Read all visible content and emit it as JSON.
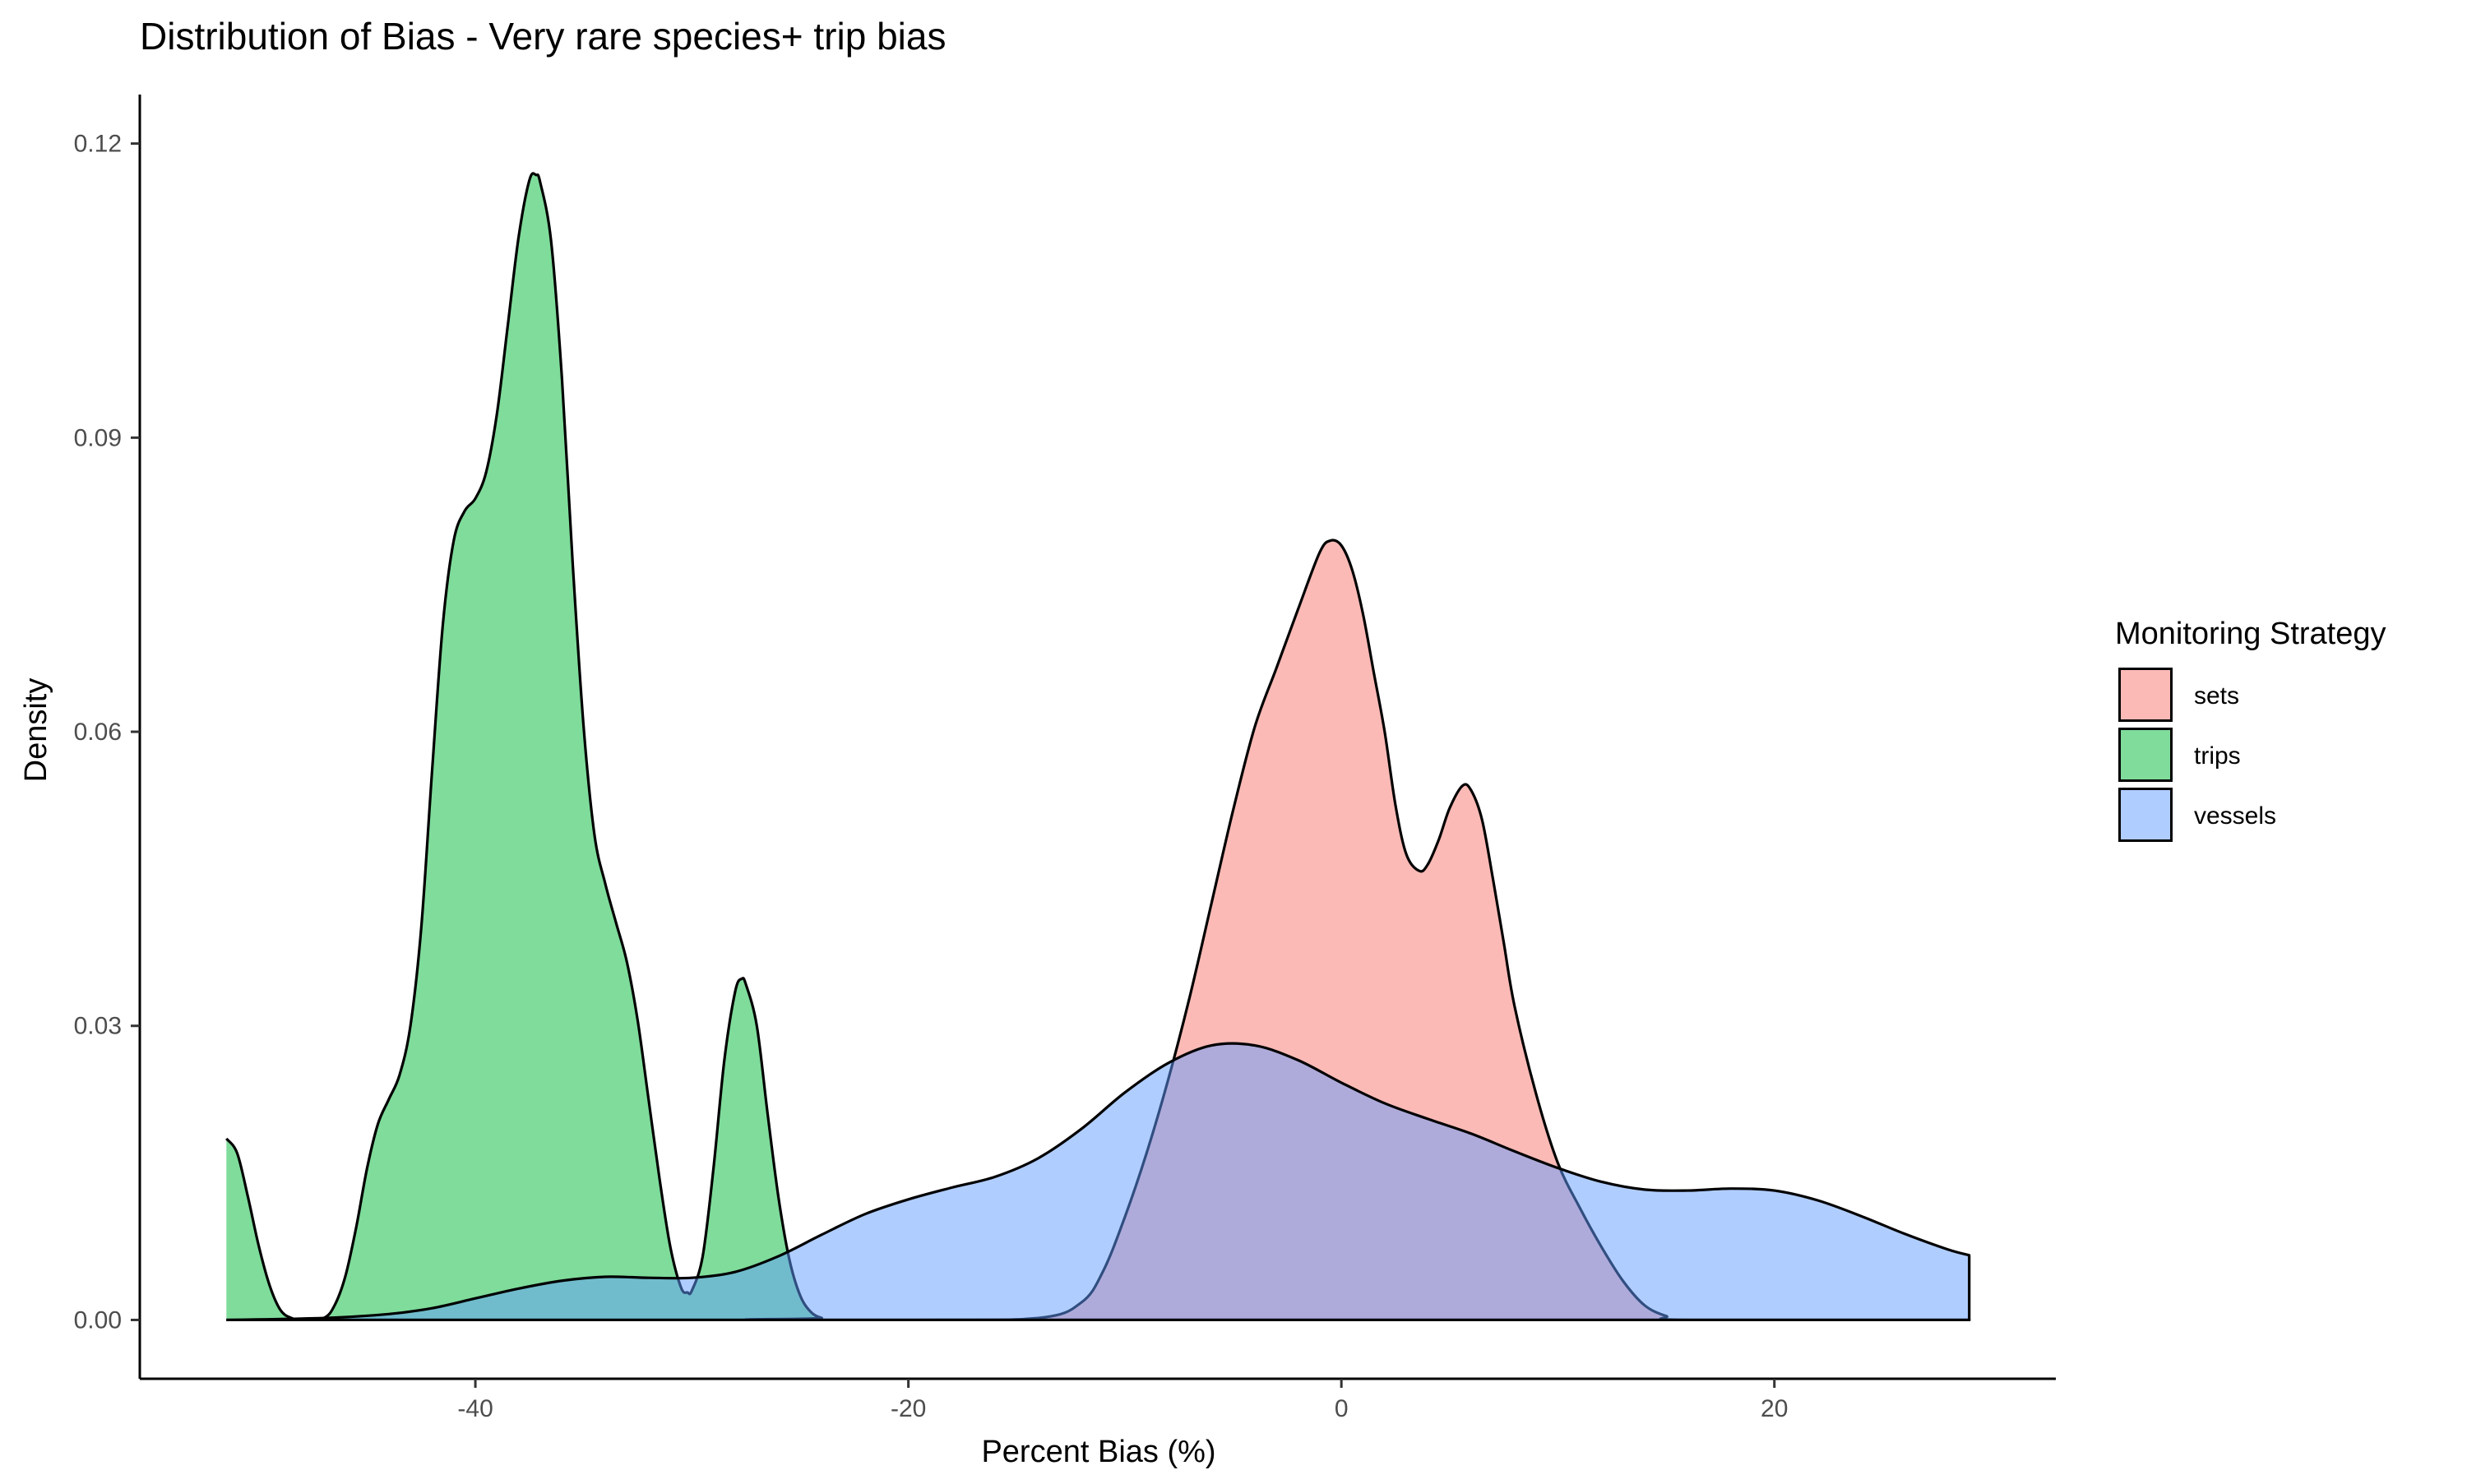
{
  "chart_data": {
    "type": "area",
    "title": "Distribution of Bias - Very rare species+ trip bias",
    "xlabel": "Percent Bias (%)",
    "ylabel": "Density",
    "xlim": [
      -55.5,
      33
    ],
    "ylim": [
      -0.006,
      0.125
    ],
    "x_ticks": [
      -40,
      -20,
      0,
      20
    ],
    "x_tick_labels": [
      "-40",
      "-20",
      "0",
      "20"
    ],
    "y_ticks": [
      0,
      0.03,
      0.06,
      0.09,
      0.12
    ],
    "y_tick_labels": [
      "0.00",
      "0.03",
      "0.06",
      "0.09",
      "0.12"
    ],
    "grid": false,
    "legend": {
      "title": "Monitoring Strategy",
      "position": "right"
    },
    "series": [
      {
        "name": "sets",
        "color": "#F8766D",
        "points": [
          [
            -51.5,
            0
          ],
          [
            -20,
            0
          ],
          [
            -14,
            0.0002
          ],
          [
            -12,
            0.0018
          ],
          [
            -11,
            0.005
          ],
          [
            -10,
            0.0105
          ],
          [
            -9,
            0.017
          ],
          [
            -8,
            0.0245
          ],
          [
            -7,
            0.033
          ],
          [
            -6,
            0.0425
          ],
          [
            -5,
            0.052
          ],
          [
            -4,
            0.0605
          ],
          [
            -3,
            0.0665
          ],
          [
            -2,
            0.0725
          ],
          [
            -1,
            0.0783
          ],
          [
            -0.5,
            0.0795
          ],
          [
            0,
            0.079
          ],
          [
            0.5,
            0.0765
          ],
          [
            1,
            0.072
          ],
          [
            1.5,
            0.066
          ],
          [
            2,
            0.06
          ],
          [
            2.5,
            0.0525
          ],
          [
            3,
            0.0475
          ],
          [
            3.6,
            0.0458
          ],
          [
            4,
            0.0465
          ],
          [
            4.5,
            0.049
          ],
          [
            5,
            0.0522
          ],
          [
            5.6,
            0.0545
          ],
          [
            6,
            0.054
          ],
          [
            6.5,
            0.051
          ],
          [
            7,
            0.045
          ],
          [
            7.5,
            0.0385
          ],
          [
            8,
            0.032
          ],
          [
            9,
            0.023
          ],
          [
            10,
            0.016
          ],
          [
            11,
            0.0115
          ],
          [
            12,
            0.0075
          ],
          [
            13,
            0.004
          ],
          [
            14,
            0.0015
          ],
          [
            15,
            0.0004
          ],
          [
            16,
            0
          ],
          [
            29,
            0
          ]
        ]
      },
      {
        "name": "trips",
        "color": "#00BA38",
        "points": [
          [
            -51.5,
            0.0185
          ],
          [
            -51,
            0.017
          ],
          [
            -50.5,
            0.0125
          ],
          [
            -50,
            0.0075
          ],
          [
            -49.5,
            0.0035
          ],
          [
            -49,
            0.001
          ],
          [
            -48.5,
            0.0002
          ],
          [
            -48,
            0
          ],
          [
            -47,
            0.0002
          ],
          [
            -46.5,
            0.0015
          ],
          [
            -46,
            0.0045
          ],
          [
            -45.5,
            0.0095
          ],
          [
            -45,
            0.0155
          ],
          [
            -44.5,
            0.02
          ],
          [
            -44,
            0.0225
          ],
          [
            -43.5,
            0.025
          ],
          [
            -43,
            0.03
          ],
          [
            -42.5,
            0.04
          ],
          [
            -42,
            0.056
          ],
          [
            -41.5,
            0.071
          ],
          [
            -41,
            0.0795
          ],
          [
            -40.5,
            0.0825
          ],
          [
            -40,
            0.0838
          ],
          [
            -39.5,
            0.0865
          ],
          [
            -39,
            0.0925
          ],
          [
            -38.5,
            0.1015
          ],
          [
            -38,
            0.1105
          ],
          [
            -37.5,
            0.1163
          ],
          [
            -37.2,
            0.1168
          ],
          [
            -37,
            0.116
          ],
          [
            -36.5,
            0.11
          ],
          [
            -36,
            0.096
          ],
          [
            -35.5,
            0.077
          ],
          [
            -35,
            0.0605
          ],
          [
            -34.5,
            0.0495
          ],
          [
            -34,
            0.0445
          ],
          [
            -33.5,
            0.0405
          ],
          [
            -33,
            0.0365
          ],
          [
            -32.5,
            0.0305
          ],
          [
            -32,
            0.0225
          ],
          [
            -31.5,
            0.0145
          ],
          [
            -31,
            0.0075
          ],
          [
            -30.5,
            0.0033
          ],
          [
            -30.2,
            0.0028
          ],
          [
            -30,
            0.003
          ],
          [
            -29.5,
            0.0065
          ],
          [
            -29,
            0.0155
          ],
          [
            -28.5,
            0.0265
          ],
          [
            -28,
            0.0335
          ],
          [
            -27.7,
            0.0348
          ],
          [
            -27.5,
            0.0342
          ],
          [
            -27,
            0.03
          ],
          [
            -26.5,
            0.021
          ],
          [
            -26,
            0.0125
          ],
          [
            -25.5,
            0.0062
          ],
          [
            -25,
            0.0025
          ],
          [
            -24.5,
            0.0008
          ],
          [
            -24,
            0.0002
          ],
          [
            -23.5,
            0
          ],
          [
            29,
            0
          ]
        ]
      },
      {
        "name": "vessels",
        "color": "#619CFF",
        "points": [
          [
            -51.5,
            0
          ],
          [
            -47,
            0.0002
          ],
          [
            -44,
            0.0006
          ],
          [
            -42,
            0.0012
          ],
          [
            -40,
            0.0022
          ],
          [
            -38,
            0.0032
          ],
          [
            -36,
            0.004
          ],
          [
            -34,
            0.0044
          ],
          [
            -32,
            0.0043
          ],
          [
            -30,
            0.0043
          ],
          [
            -28,
            0.0049
          ],
          [
            -26,
            0.0065
          ],
          [
            -24,
            0.0087
          ],
          [
            -22,
            0.0108
          ],
          [
            -20,
            0.0123
          ],
          [
            -18,
            0.0135
          ],
          [
            -16,
            0.0146
          ],
          [
            -14,
            0.0165
          ],
          [
            -12,
            0.0195
          ],
          [
            -10,
            0.0232
          ],
          [
            -8,
            0.0262
          ],
          [
            -6,
            0.028
          ],
          [
            -4,
            0.028
          ],
          [
            -2,
            0.0265
          ],
          [
            0,
            0.0242
          ],
          [
            2,
            0.0221
          ],
          [
            4,
            0.0205
          ],
          [
            6,
            0.019
          ],
          [
            8,
            0.0172
          ],
          [
            10,
            0.0155
          ],
          [
            12,
            0.0141
          ],
          [
            14,
            0.0133
          ],
          [
            16,
            0.0132
          ],
          [
            18,
            0.0134
          ],
          [
            20,
            0.0132
          ],
          [
            22,
            0.0122
          ],
          [
            24,
            0.0106
          ],
          [
            26,
            0.0088
          ],
          [
            28,
            0.0072
          ],
          [
            29,
            0.0066
          ]
        ]
      }
    ]
  }
}
